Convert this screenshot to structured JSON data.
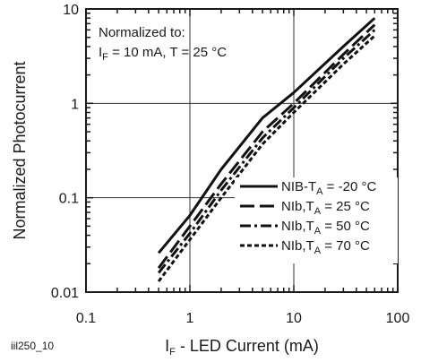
{
  "figure_id": "iil250_10",
  "chart_data": {
    "type": "line",
    "title": "",
    "xlabel": {
      "main": "I",
      "sub": "F",
      "rest": " - LED Current (mA)"
    },
    "ylabel": "Normalized Photocurrent",
    "x_scale": "log",
    "y_scale": "log",
    "xlim": [
      0.1,
      100
    ],
    "ylim": [
      0.01,
      10
    ],
    "x_ticks": [
      "0.1",
      "1",
      "10",
      "100"
    ],
    "y_ticks": [
      "0.01",
      "0.1",
      "1",
      "10"
    ],
    "grid": true,
    "legend_placement": "lower-right",
    "annotation": {
      "line1": "Normalized to:",
      "line2": {
        "main": "I",
        "sub": "F",
        "rest": " = 10 mA, T = 25 °C"
      }
    },
    "series": [
      {
        "name": {
          "pre": "NIB-T",
          "sub": "A",
          "post": " = -20 °C"
        },
        "style": "solid",
        "x": [
          0.5,
          1,
          2,
          5,
          10,
          30,
          60
        ],
        "y": [
          0.026,
          0.065,
          0.2,
          0.7,
          1.3,
          4.0,
          8.0
        ]
      },
      {
        "name": {
          "pre": "NIb,T",
          "sub": "A",
          "post": " = 25 °C"
        },
        "style": "longdash",
        "x": [
          0.5,
          1,
          2,
          5,
          10,
          30,
          60
        ],
        "y": [
          0.018,
          0.05,
          0.14,
          0.5,
          1.0,
          3.3,
          6.8
        ]
      },
      {
        "name": {
          "pre": "NIb,T",
          "sub": "A",
          "post": " = 50 °C"
        },
        "style": "dashdot",
        "x": [
          0.5,
          1,
          2,
          5,
          10,
          30,
          60
        ],
        "y": [
          0.016,
          0.042,
          0.12,
          0.43,
          0.9,
          3.0,
          6.0
        ]
      },
      {
        "name": {
          "pre": "NIb,T",
          "sub": "A",
          "post": " = 70 °C"
        },
        "style": "shortdash",
        "x": [
          0.5,
          1,
          2,
          5,
          10,
          30,
          60
        ],
        "y": [
          0.013,
          0.036,
          0.1,
          0.37,
          0.8,
          2.6,
          5.2
        ]
      }
    ]
  }
}
